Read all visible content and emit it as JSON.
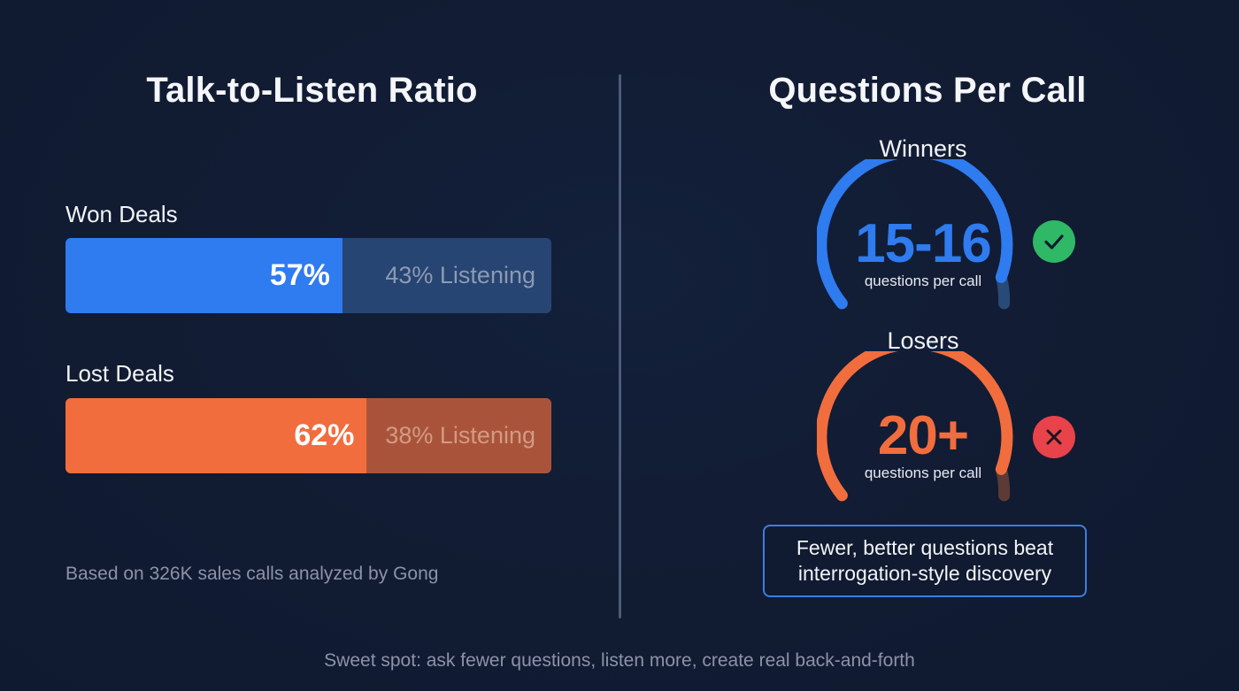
{
  "left_panel": {
    "title": "Talk-to-Listen Ratio",
    "won": {
      "label": "Won Deals",
      "talk_pct": 57,
      "talk_text": "57%",
      "listen_text": "43% Listening",
      "talk_color": "#2f7bf0",
      "listen_color": "#274572",
      "listen_text_color": "#8b9ab3"
    },
    "lost": {
      "label": "Lost Deals",
      "talk_pct": 62,
      "talk_text": "62%",
      "listen_text": "38% Listening",
      "talk_color": "#f26d3d",
      "listen_color": "#a9543a",
      "listen_text_color": "#d39a84"
    },
    "footnote": "Based on 326K sales calls analyzed by Gong"
  },
  "right_panel": {
    "title": "Questions Per Call",
    "winners": {
      "label": "Winners",
      "value": "15-16",
      "sub": "questions per call",
      "color": "#2f7bf0",
      "dim_color": "#284a77",
      "status": "check-icon",
      "status_color": "#2fb866"
    },
    "losers": {
      "label": "Losers",
      "value": "20+",
      "sub": "questions per call",
      "color": "#f26d3d",
      "dim_color": "#5c3a36",
      "status": "x-icon",
      "status_color": "#e8424a"
    },
    "callout": {
      "line1": "Fewer, better questions beat",
      "line2": "interrogation-style discovery"
    }
  },
  "bottom_note": "Sweet spot: ask fewer questions, listen more, create real back-and-forth",
  "chart_data": [
    {
      "type": "bar",
      "title": "Talk-to-Listen Ratio",
      "orientation": "horizontal-stacked",
      "categories": [
        "Won Deals",
        "Lost Deals"
      ],
      "series": [
        {
          "name": "Talking",
          "values": [
            57,
            62
          ]
        },
        {
          "name": "Listening",
          "values": [
            43,
            38
          ]
        }
      ],
      "xlabel": "",
      "ylabel": "",
      "xlim": [
        0,
        100
      ],
      "annotations": [
        "Based on 326K sales calls analyzed by Gong"
      ]
    },
    {
      "type": "gauge",
      "title": "Questions Per Call",
      "categories": [
        "Winners",
        "Losers"
      ],
      "values": [
        "15-16",
        "20+"
      ],
      "unit": "questions per call",
      "annotations": [
        "Fewer, better questions beat interrogation-style discovery"
      ]
    }
  ]
}
